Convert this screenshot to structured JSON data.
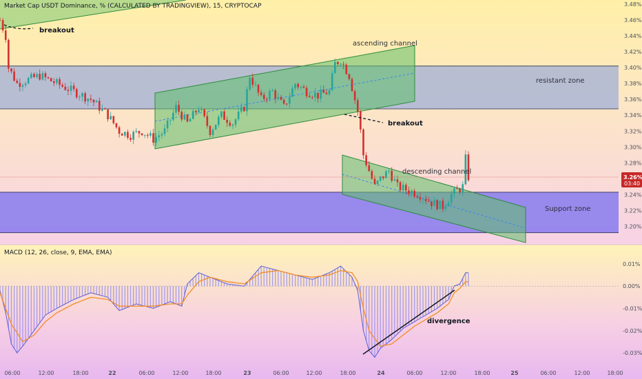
{
  "header": {
    "title": "Market Cap USDT Dominance, % (CALCULATED BY TRADINGVIEW), 15, CRYPTOCAP",
    "macd_title": "MACD (12, 26, close, 9, EMA, EMA)"
  },
  "price_badge": {
    "value": "3.26%",
    "countdown": "03:40",
    "color": "#c62828"
  },
  "colors": {
    "candle_up": "#26a69a",
    "candle_down": "#d32f2f",
    "resistant_zone": "#7e9be0",
    "support_zone": "#6f68f2",
    "channel_fill": "#5fbf6a",
    "channel_mid": "#3b82f6",
    "macd_signal": "#f28c28",
    "macd_hist": "#8f8cf0"
  },
  "annotations": {
    "breakout_1": "breakout",
    "breakout_2": "breakout",
    "ascending_channel": "ascending channel",
    "descending_channel": "descending channel",
    "resistant_zone": "resistant zone",
    "support_zone": "Support zone",
    "divergence": "divergence"
  },
  "chart_data": [
    {
      "type": "candlestick",
      "ylim": [
        3.19,
        3.48
      ],
      "y_ticks": [
        "3.48%",
        "3.46%",
        "3.44%",
        "3.42%",
        "3.40%",
        "3.38%",
        "3.36%",
        "3.34%",
        "3.32%",
        "3.30%",
        "3.28%",
        "3.26%",
        "3.24%",
        "3.22%",
        "3.20%"
      ],
      "x_ticks": [
        "06:00",
        "12:00",
        "18:00",
        "22",
        "06:00",
        "12:00",
        "18:00",
        "23",
        "06:00",
        "12:00",
        "18:00",
        "24",
        "06:00",
        "12:00",
        "18:00",
        "25",
        "06:00",
        "12:00",
        "18:00"
      ],
      "zones": [
        {
          "name": "resistant zone",
          "from": 3.348,
          "to": 3.402
        },
        {
          "name": "Support zone",
          "from": 3.192,
          "to": 3.243
        }
      ],
      "last_price": 3.26,
      "price_path": [
        [
          0,
          3.46
        ],
        [
          2,
          3.44
        ],
        [
          3,
          3.4
        ],
        [
          6,
          3.38
        ],
        [
          14,
          3.39
        ],
        [
          20,
          3.38
        ],
        [
          26,
          3.37
        ],
        [
          32,
          3.36
        ],
        [
          38,
          3.34
        ],
        [
          42,
          3.32
        ],
        [
          46,
          3.315
        ],
        [
          50,
          3.32
        ],
        [
          54,
          3.31
        ],
        [
          58,
          3.32
        ],
        [
          62,
          3.35
        ],
        [
          66,
          3.33
        ],
        [
          70,
          3.35
        ],
        [
          74,
          3.32
        ],
        [
          78,
          3.34
        ],
        [
          82,
          3.33
        ],
        [
          86,
          3.35
        ],
        [
          88,
          3.39
        ],
        [
          92,
          3.36
        ],
        [
          96,
          3.37
        ],
        [
          100,
          3.35
        ],
        [
          104,
          3.38
        ],
        [
          108,
          3.37
        ],
        [
          112,
          3.365
        ],
        [
          116,
          3.37
        ],
        [
          118,
          3.405
        ],
        [
          120,
          3.41
        ],
        [
          123,
          3.39
        ],
        [
          125,
          3.36
        ],
        [
          126,
          3.345
        ],
        [
          127,
          3.32
        ],
        [
          128,
          3.29
        ],
        [
          130,
          3.27
        ],
        [
          132,
          3.25
        ],
        [
          134,
          3.26
        ],
        [
          137,
          3.27
        ],
        [
          140,
          3.25
        ],
        [
          144,
          3.245
        ],
        [
          148,
          3.24
        ],
        [
          152,
          3.23
        ],
        [
          156,
          3.225
        ],
        [
          159,
          3.24
        ],
        [
          161,
          3.245
        ],
        [
          163,
          3.25
        ],
        [
          164,
          3.285
        ],
        [
          165,
          3.262
        ]
      ]
    },
    {
      "type": "macd",
      "ylim": [
        -0.034,
        0.014
      ],
      "y_ticks": [
        "0.01%",
        "0.00%",
        "-0.01%",
        "-0.02%",
        "-0.03%"
      ],
      "macd_path": [
        [
          0,
          -0.002
        ],
        [
          2,
          -0.012
        ],
        [
          4,
          -0.026
        ],
        [
          6,
          -0.03
        ],
        [
          8,
          -0.027
        ],
        [
          12,
          -0.02
        ],
        [
          16,
          -0.013
        ],
        [
          20,
          -0.01
        ],
        [
          26,
          -0.006
        ],
        [
          32,
          -0.003
        ],
        [
          38,
          -0.005
        ],
        [
          42,
          -0.011
        ],
        [
          48,
          -0.008
        ],
        [
          54,
          -0.01
        ],
        [
          60,
          -0.007
        ],
        [
          64,
          -0.009
        ],
        [
          66,
          0.001
        ],
        [
          70,
          0.006
        ],
        [
          74,
          0.004
        ],
        [
          80,
          0.001
        ],
        [
          86,
          0.0
        ],
        [
          88,
          0.003
        ],
        [
          92,
          0.009
        ],
        [
          98,
          0.007
        ],
        [
          104,
          0.005
        ],
        [
          110,
          0.003
        ],
        [
          116,
          0.006
        ],
        [
          120,
          0.009
        ],
        [
          124,
          0.004
        ],
        [
          126,
          -0.002
        ],
        [
          128,
          -0.02
        ],
        [
          130,
          -0.029
        ],
        [
          132,
          -0.032
        ],
        [
          134,
          -0.028
        ],
        [
          138,
          -0.024
        ],
        [
          142,
          -0.019
        ],
        [
          146,
          -0.016
        ],
        [
          150,
          -0.013
        ],
        [
          154,
          -0.01
        ],
        [
          158,
          -0.006
        ],
        [
          160,
          0.0
        ],
        [
          162,
          0.001
        ],
        [
          164,
          0.006
        ]
      ],
      "signal_path": [
        [
          0,
          -0.003
        ],
        [
          4,
          -0.017
        ],
        [
          8,
          -0.025
        ],
        [
          12,
          -0.022
        ],
        [
          16,
          -0.016
        ],
        [
          20,
          -0.012
        ],
        [
          26,
          -0.008
        ],
        [
          32,
          -0.005
        ],
        [
          38,
          -0.006
        ],
        [
          42,
          -0.009
        ],
        [
          48,
          -0.009
        ],
        [
          54,
          -0.009
        ],
        [
          60,
          -0.008
        ],
        [
          64,
          -0.008
        ],
        [
          66,
          -0.004
        ],
        [
          70,
          0.002
        ],
        [
          74,
          0.004
        ],
        [
          80,
          0.002
        ],
        [
          86,
          0.001
        ],
        [
          92,
          0.006
        ],
        [
          98,
          0.007
        ],
        [
          104,
          0.005
        ],
        [
          110,
          0.004
        ],
        [
          116,
          0.005
        ],
        [
          120,
          0.007
        ],
        [
          124,
          0.006
        ],
        [
          126,
          0.002
        ],
        [
          128,
          -0.01
        ],
        [
          130,
          -0.02
        ],
        [
          134,
          -0.027
        ],
        [
          138,
          -0.026
        ],
        [
          142,
          -0.022
        ],
        [
          146,
          -0.018
        ],
        [
          150,
          -0.015
        ],
        [
          154,
          -0.012
        ],
        [
          158,
          -0.008
        ],
        [
          160,
          -0.003
        ],
        [
          162,
          -0.001
        ],
        [
          164,
          0.002
        ]
      ]
    }
  ]
}
